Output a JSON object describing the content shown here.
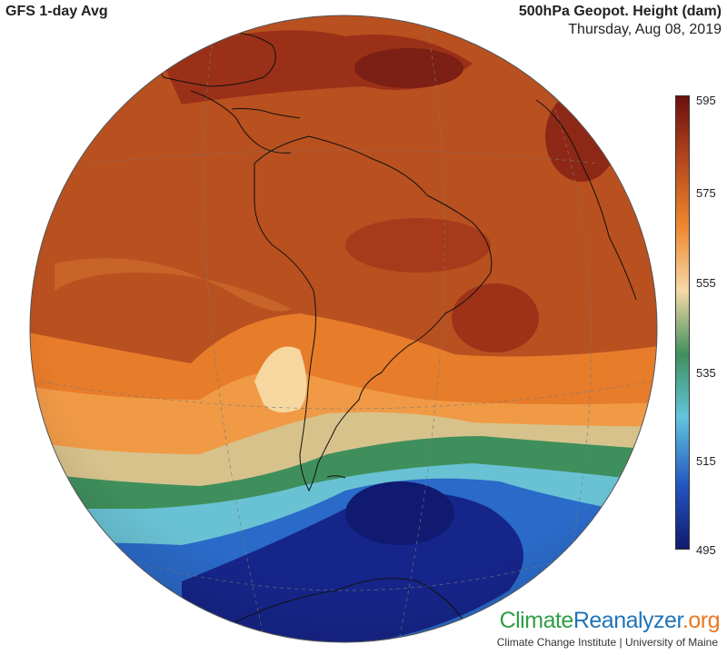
{
  "header": {
    "product": "GFS 1-day Avg",
    "variable": "500hPa Geopot. Height (dam)",
    "date": "Thursday, Aug 08, 2019"
  },
  "colorbar": {
    "labels": [
      "595",
      "575",
      "555",
      "535",
      "515",
      "495"
    ],
    "colors": [
      "#6b1010",
      "#b4471c",
      "#f0892f",
      "#f5d9a8",
      "#3f8f5c",
      "#62c5de",
      "#2255c0",
      "#121a6e"
    ]
  },
  "branding": {
    "logo_part1": "Climate",
    "logo_part2": "Reanalyzer",
    "logo_part3": ".org",
    "footer": "Climate Change Institute | University of Maine"
  }
}
